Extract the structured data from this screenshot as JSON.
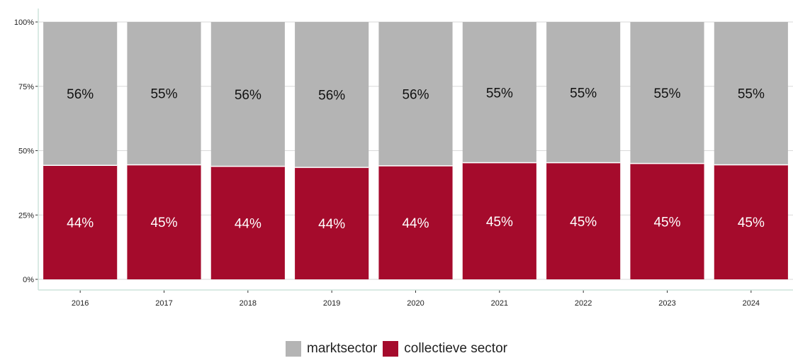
{
  "chart_data": {
    "type": "bar",
    "stacked": true,
    "categories": [
      "2016",
      "2017",
      "2018",
      "2019",
      "2020",
      "2021",
      "2022",
      "2023",
      "2024"
    ],
    "series": [
      {
        "name": "collectieve sector",
        "color": "#a50b2c",
        "values": [
          44.3,
          44.5,
          43.9,
          43.5,
          44.1,
          45.3,
          45.3,
          45.0,
          44.5
        ],
        "labels": [
          "44%",
          "45%",
          "44%",
          "44%",
          "44%",
          "45%",
          "45%",
          "45%",
          "45%"
        ]
      },
      {
        "name": "marktsector",
        "color": "#b4b4b4",
        "values": [
          55.7,
          55.5,
          56.1,
          56.5,
          55.9,
          54.7,
          54.7,
          55.0,
          55.5
        ],
        "labels": [
          "56%",
          "55%",
          "56%",
          "56%",
          "56%",
          "55%",
          "55%",
          "55%",
          "55%"
        ]
      }
    ],
    "y_ticks": [
      "0%",
      "25%",
      "50%",
      "75%",
      "100%"
    ],
    "ylim": [
      0,
      100
    ],
    "grid": true,
    "legend_position": "bottom"
  }
}
